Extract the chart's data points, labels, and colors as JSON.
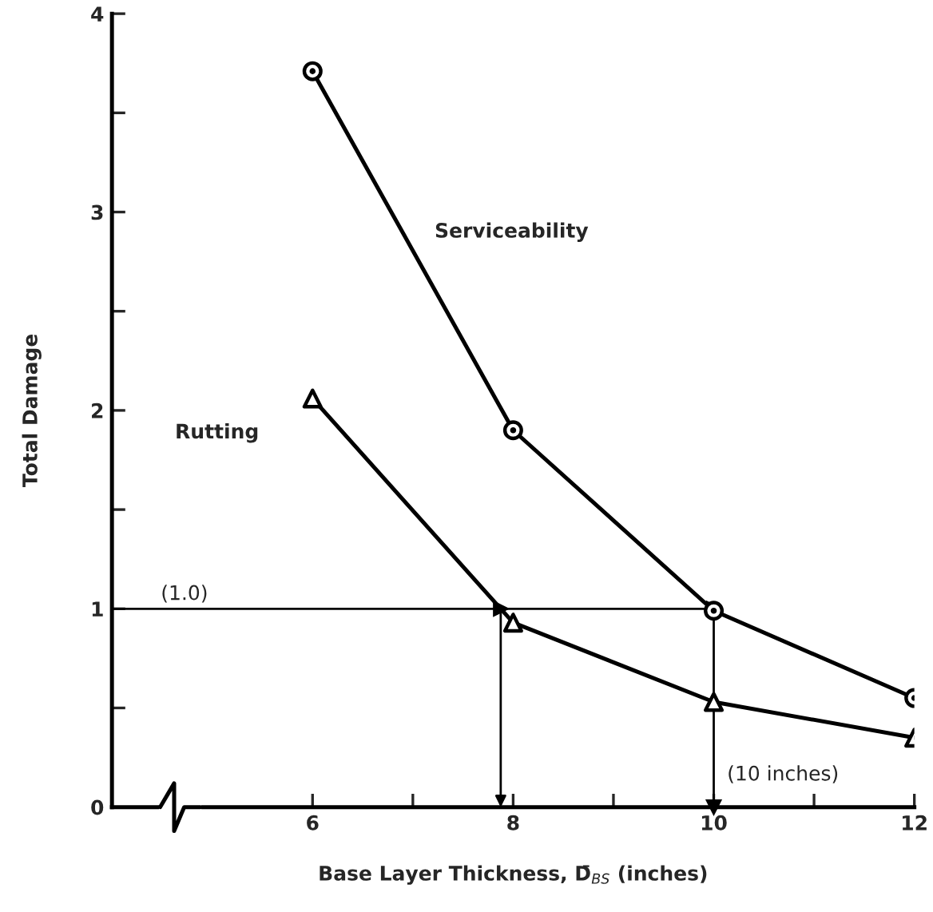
{
  "chart_data": {
    "type": "line",
    "xlabel": "Base Layer Thickness, D̄$_{BS}$ (inches)",
    "ylabel": "Total Damage",
    "x": [
      6,
      8,
      10,
      12
    ],
    "series": [
      {
        "name": "Serviceability",
        "color": "#000000",
        "marker": "circle",
        "values": [
          3.71,
          1.9,
          0.99,
          0.55
        ]
      },
      {
        "name": "Rutting",
        "color": "#000000",
        "marker": "triangle",
        "values": [
          2.06,
          0.93,
          0.53,
          0.35
        ]
      }
    ],
    "ref_lines": [
      {
        "axis": "y",
        "value": 1.0,
        "label": "(1.0)",
        "color": "#000000",
        "line_style": "solid"
      },
      {
        "axis": "x",
        "value": 10,
        "label": "(10 inches)",
        "color": "#000000",
        "line_style": "solid"
      }
    ],
    "xlim": [
      4,
      12
    ],
    "xticks": [
      6,
      {
        "value": 7,
        "label": null
      },
      8,
      {
        "value": 9,
        "label": null
      },
      10,
      {
        "value": 11,
        "label": null
      },
      12
    ],
    "ylim": [
      0,
      4
    ],
    "yticks": [
      0,
      {
        "value": 0.5,
        "label": null
      },
      1,
      {
        "value": 1.5,
        "label": null
      },
      2,
      {
        "value": 2.5,
        "label": null
      },
      3,
      {
        "value": 3.5,
        "label": null
      },
      4
    ],
    "grid": false,
    "legend": false,
    "line_style": "solid"
  }
}
